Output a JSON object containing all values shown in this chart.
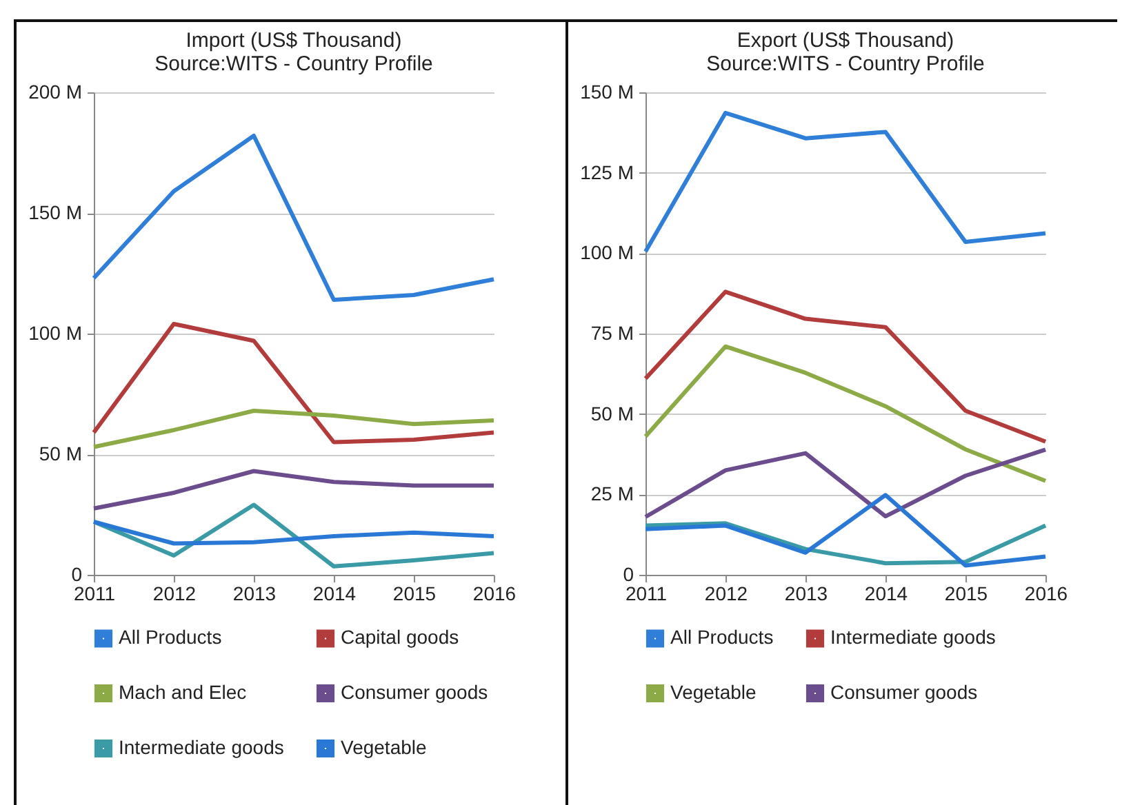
{
  "chart_data": [
    {
      "type": "line",
      "title": "Import (US$ Thousand)",
      "subtitle": "Source:WITS - Country Profile",
      "categories": [
        "2011",
        "2012",
        "2013",
        "2014",
        "2015",
        "2016"
      ],
      "ylim": [
        0,
        200
      ],
      "yticks": [
        0,
        {
          "value": 50,
          "label": "50 M"
        },
        {
          "value": 100,
          "label": "100 M"
        },
        {
          "value": 150,
          "label": "150 M"
        },
        {
          "value": 200,
          "label": "200 M"
        }
      ],
      "grid": "y",
      "legend": "bottom",
      "series": [
        {
          "name": "All Products",
          "color": "#2f7ed8",
          "values": [
            123,
            159,
            182,
            114,
            116,
            122.5
          ]
        },
        {
          "name": "Capital goods",
          "color": "#b23b3b",
          "values": [
            59,
            104,
            97,
            55,
            56,
            59
          ]
        },
        {
          "name": "Mach and Elec",
          "color": "#8cab46",
          "values": [
            53,
            60,
            68,
            66,
            62.5,
            64
          ]
        },
        {
          "name": "Consumer goods",
          "color": "#6b4c8c",
          "values": [
            27.5,
            34,
            43,
            38.5,
            37,
            37
          ]
        },
        {
          "name": "Intermediate goods",
          "color": "#3a9aa6",
          "values": [
            22,
            8,
            29,
            3.5,
            6,
            9
          ]
        },
        {
          "name": "Vegetable",
          "color": "#2a78d6",
          "values": [
            22,
            13,
            13.5,
            16,
            17.5,
            16
          ]
        }
      ]
    },
    {
      "type": "line",
      "title": "Export (US$ Thousand)",
      "subtitle": "Source:WITS - Country Profile",
      "categories": [
        "2011",
        "2012",
        "2013",
        "2014",
        "2015",
        "2016"
      ],
      "ylim": [
        0,
        150
      ],
      "yticks": [
        0,
        {
          "value": 25,
          "label": "25 M"
        },
        {
          "value": 50,
          "label": "50 M"
        },
        {
          "value": 75,
          "label": "75 M"
        },
        {
          "value": 100,
          "label": "100 M"
        },
        {
          "value": 125,
          "label": "125 M"
        },
        {
          "value": 150,
          "label": "150 M"
        }
      ],
      "grid": "y",
      "legend": "bottom",
      "series": [
        {
          "name": "All Products",
          "color": "#2f7ed8",
          "values": [
            100.5,
            143.6,
            135.7,
            137.7,
            103.5,
            106.2
          ]
        },
        {
          "name": "Intermediate goods",
          "color": "#b23b3b",
          "values": [
            61,
            88,
            79.6,
            77,
            51,
            41.4
          ]
        },
        {
          "name": "Vegetable",
          "color": "#8cab46",
          "values": [
            43,
            71,
            62.8,
            52.4,
            39,
            29.2
          ]
        },
        {
          "name": "Consumer goods",
          "color": "#6b4c8c",
          "values": [
            18,
            32.5,
            37.8,
            18.2,
            30.8,
            38.9
          ]
        },
        {
          "color": "#3a9aa6",
          "values": [
            15.3,
            16,
            8,
            3.6,
            4,
            15.3
          ]
        },
        {
          "color": "#2a78d6",
          "values": [
            14.2,
            15.3,
            6.9,
            24.8,
            2.9,
            5.7
          ]
        }
      ]
    }
  ]
}
